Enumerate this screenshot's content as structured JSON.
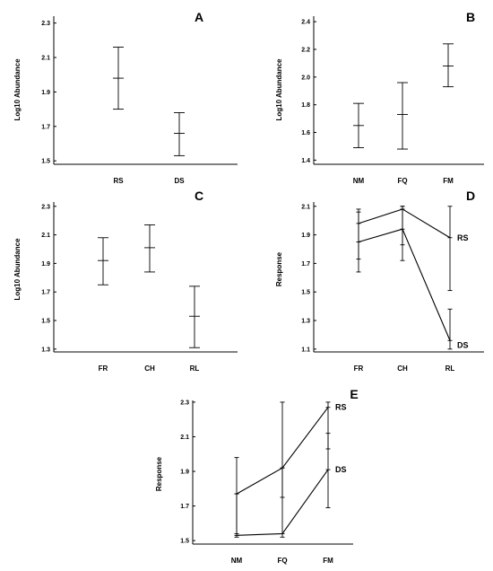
{
  "chart_data": [
    {
      "panel_label": "A",
      "type": "errorbar",
      "ylabel": "Log10 Abundance",
      "ylim": [
        1.48,
        2.34
      ],
      "yticks": [
        "1.5",
        "1.7",
        "1.9",
        "2.1",
        "2.3"
      ],
      "categories": [
        "RS",
        "DS"
      ],
      "series": [
        {
          "values": [
            1.98,
            1.66
          ],
          "lower": [
            1.8,
            1.53
          ],
          "upper": [
            2.16,
            1.78
          ]
        }
      ]
    },
    {
      "panel_label": "B",
      "type": "errorbar",
      "ylabel": "Log10 Abundance",
      "ylim": [
        1.37,
        2.44
      ],
      "yticks": [
        "1.4",
        "1.6",
        "1.8",
        "2.0",
        "2.2",
        "2.4"
      ],
      "categories": [
        "NM",
        "FQ",
        "FM"
      ],
      "series": [
        {
          "values": [
            1.65,
            1.73,
            2.08
          ],
          "lower": [
            1.49,
            1.48,
            1.93
          ],
          "upper": [
            1.81,
            1.96,
            2.24
          ]
        }
      ]
    },
    {
      "panel_label": "C",
      "type": "errorbar",
      "ylabel": "Log10 Abundance",
      "ylim": [
        1.28,
        2.33
      ],
      "yticks": [
        "1.3",
        "1.5",
        "1.7",
        "1.9",
        "2.1",
        "2.3"
      ],
      "categories": [
        "FR",
        "CH",
        "RL"
      ],
      "series": [
        {
          "values": [
            1.92,
            2.01,
            1.53
          ],
          "lower": [
            1.75,
            1.84,
            1.31
          ],
          "upper": [
            2.08,
            2.17,
            1.74
          ]
        }
      ]
    },
    {
      "panel_label": "D",
      "type": "line",
      "ylabel": "Response",
      "ylim": [
        1.08,
        2.13
      ],
      "yticks": [
        "1.1",
        "1.3",
        "1.5",
        "1.7",
        "1.9",
        "2.1"
      ],
      "categories": [
        "FR",
        "CH",
        "RL"
      ],
      "series": [
        {
          "name": "RS",
          "values": [
            1.98,
            2.08,
            1.88
          ],
          "lower": [
            1.73,
            1.83,
            1.51
          ],
          "upper": [
            2.08,
            2.1,
            2.1
          ]
        },
        {
          "name": "DS",
          "values": [
            1.85,
            1.94,
            1.16
          ],
          "lower": [
            1.64,
            1.72,
            1.1
          ],
          "upper": [
            2.06,
            2.1,
            1.38
          ]
        }
      ]
    },
    {
      "panel_label": "E",
      "type": "line",
      "ylabel": "Response",
      "ylim": [
        1.48,
        2.31
      ],
      "yticks": [
        "1.5",
        "1.7",
        "1.9",
        "2.1",
        "2.3"
      ],
      "categories": [
        "NM",
        "FQ",
        "FM"
      ],
      "series": [
        {
          "name": "RS",
          "values": [
            1.77,
            1.92,
            2.27
          ],
          "lower": [
            1.54,
            1.75,
            2.03
          ],
          "upper": [
            1.98,
            2.3,
            2.3
          ]
        },
        {
          "name": "DS",
          "values": [
            1.53,
            1.54,
            1.91
          ],
          "lower": [
            1.52,
            1.52,
            1.69
          ],
          "upper": [
            1.77,
            1.92,
            2.12
          ]
        }
      ]
    }
  ]
}
